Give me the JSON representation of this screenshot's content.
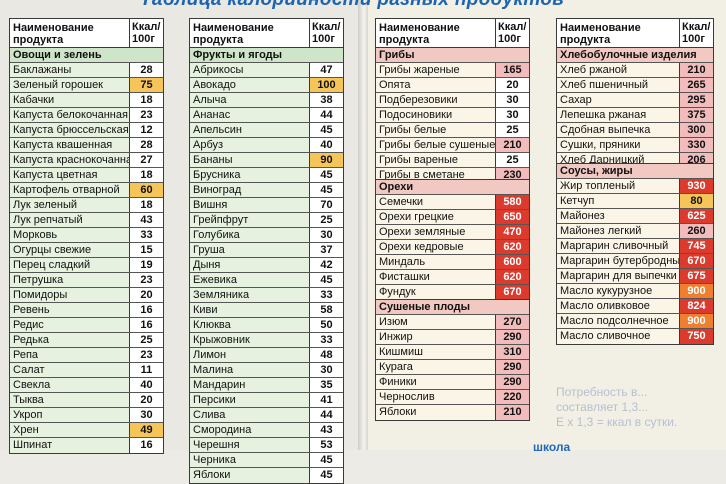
{
  "header_title": "Таблица калорийности разных продуктов",
  "school_label": "школа",
  "faded_text": [
    "Потребность в...",
    "составляет 1,3...",
    "Е x 1,3 = ккал в сутки."
  ],
  "columns": {
    "name": "Наименование продукта",
    "kcal": "Ккал/ 100г"
  },
  "colors": {
    "low": "#ffffff",
    "medium": "#f6c55a",
    "elevated": "#f2bcbc",
    "high": "#dd3a2e",
    "very_high": "#ef7f2f",
    "section_green": "#cfe5c9",
    "section_pink": "#f1c9c2",
    "title_blue": "#1d64b3"
  },
  "tables": [
    {
      "sections": [
        {
          "title": "Овощи и зелень",
          "items": [
            {
              "name": "Баклажаны",
              "kcal": "28",
              "level": "w"
            },
            {
              "name": "Зеленый горошек",
              "kcal": "75",
              "level": "y"
            },
            {
              "name": "Кабачки",
              "kcal": "18",
              "level": "w"
            },
            {
              "name": "Капуста белокочанная",
              "kcal": "23",
              "level": "w"
            },
            {
              "name": "Капуста брюссельская",
              "kcal": "12",
              "level": "w"
            },
            {
              "name": "Капуста квашенная",
              "kcal": "28",
              "level": "w"
            },
            {
              "name": "Капуста краснокочанная",
              "kcal": "27",
              "level": "w"
            },
            {
              "name": "Капуста цветная",
              "kcal": "18",
              "level": "w"
            },
            {
              "name": "Картофель отварной",
              "kcal": "60",
              "level": "y"
            },
            {
              "name": "Лук зеленый",
              "kcal": "18",
              "level": "w"
            },
            {
              "name": "Лук репчатый",
              "kcal": "43",
              "level": "w"
            },
            {
              "name": "Морковь",
              "kcal": "33",
              "level": "w"
            },
            {
              "name": "Огурцы свежие",
              "kcal": "15",
              "level": "w"
            },
            {
              "name": "Перец сладкий",
              "kcal": "19",
              "level": "w"
            },
            {
              "name": "Петрушка",
              "kcal": "23",
              "level": "w"
            },
            {
              "name": "Помидоры",
              "kcal": "20",
              "level": "w"
            },
            {
              "name": "Ревень",
              "kcal": "16",
              "level": "w"
            },
            {
              "name": "Редис",
              "kcal": "16",
              "level": "w"
            },
            {
              "name": "Редька",
              "kcal": "25",
              "level": "w"
            },
            {
              "name": "Репа",
              "kcal": "23",
              "level": "w"
            },
            {
              "name": "Салат",
              "kcal": "11",
              "level": "w"
            },
            {
              "name": "Свекла",
              "kcal": "40",
              "level": "w"
            },
            {
              "name": "Тыква",
              "kcal": "20",
              "level": "w"
            },
            {
              "name": "Укроп",
              "kcal": "30",
              "level": "w"
            },
            {
              "name": "Хрен",
              "kcal": "49",
              "level": "y"
            },
            {
              "name": "Шпинат",
              "kcal": "16",
              "level": "w"
            }
          ]
        }
      ]
    },
    {
      "sections": [
        {
          "title": "Фрукты и ягоды",
          "items": [
            {
              "name": "Абрикосы",
              "kcal": "47",
              "level": "w"
            },
            {
              "name": "Авокадо",
              "kcal": "100",
              "level": "y"
            },
            {
              "name": "Алыча",
              "kcal": "38",
              "level": "w"
            },
            {
              "name": "Ананас",
              "kcal": "44",
              "level": "w"
            },
            {
              "name": "Апельсин",
              "kcal": "45",
              "level": "w"
            },
            {
              "name": "Арбуз",
              "kcal": "40",
              "level": "w"
            },
            {
              "name": "Бананы",
              "kcal": "90",
              "level": "y"
            },
            {
              "name": "Брусника",
              "kcal": "45",
              "level": "w"
            },
            {
              "name": "Виноград",
              "kcal": "45",
              "level": "w"
            },
            {
              "name": "Вишня",
              "kcal": "70",
              "level": "w"
            },
            {
              "name": "Грейпфрут",
              "kcal": "25",
              "level": "w"
            },
            {
              "name": "Голубика",
              "kcal": "30",
              "level": "w"
            },
            {
              "name": "Груша",
              "kcal": "37",
              "level": "w"
            },
            {
              "name": "Дыня",
              "kcal": "42",
              "level": "w"
            },
            {
              "name": "Ежевика",
              "kcal": "45",
              "level": "w"
            },
            {
              "name": "Земляника",
              "kcal": "33",
              "level": "w"
            },
            {
              "name": "Киви",
              "kcal": "58",
              "level": "w"
            },
            {
              "name": "Клюква",
              "kcal": "50",
              "level": "w"
            },
            {
              "name": "Крыжовник",
              "kcal": "33",
              "level": "w"
            },
            {
              "name": "Лимон",
              "kcal": "48",
              "level": "w"
            },
            {
              "name": "Малина",
              "kcal": "30",
              "level": "w"
            },
            {
              "name": "Мандарин",
              "kcal": "35",
              "level": "w"
            },
            {
              "name": "Персики",
              "kcal": "41",
              "level": "w"
            },
            {
              "name": "Слива",
              "kcal": "44",
              "level": "w"
            },
            {
              "name": "Смородина",
              "kcal": "43",
              "level": "w"
            },
            {
              "name": "Черешня",
              "kcal": "53",
              "level": "w"
            },
            {
              "name": "Черника",
              "kcal": "45",
              "level": "w"
            },
            {
              "name": "Яблоки",
              "kcal": "45",
              "level": "w"
            }
          ]
        }
      ]
    },
    {
      "sections": [
        {
          "title": "Грибы",
          "items": [
            {
              "name": "Грибы жареные",
              "kcal": "165",
              "level": "p"
            },
            {
              "name": "Опята",
              "kcal": "20",
              "level": "w"
            },
            {
              "name": "Подберезовики",
              "kcal": "30",
              "level": "w"
            },
            {
              "name": "Подосиновики",
              "kcal": "30",
              "level": "w"
            },
            {
              "name": "Грибы белые",
              "kcal": "25",
              "level": "w"
            },
            {
              "name": "Грибы белые сушеные",
              "kcal": "210",
              "level": "p"
            },
            {
              "name": "Грибы вареные",
              "kcal": "25",
              "level": "w"
            },
            {
              "name": "Грибы в сметане",
              "kcal": "230",
              "level": "p"
            }
          ]
        }
      ]
    },
    {
      "sections": [
        {
          "title": "Орехи",
          "items": [
            {
              "name": "Семечки",
              "kcal": "580",
              "level": "r"
            },
            {
              "name": "Орехи грецкие",
              "kcal": "650",
              "level": "r"
            },
            {
              "name": "Орехи земляные",
              "kcal": "470",
              "level": "r"
            },
            {
              "name": "Орехи кедровые",
              "kcal": "620",
              "level": "r"
            },
            {
              "name": "Миндаль",
              "kcal": "600",
              "level": "r"
            },
            {
              "name": "Фисташки",
              "kcal": "620",
              "level": "r"
            },
            {
              "name": "Фундук",
              "kcal": "670",
              "level": "r"
            }
          ]
        }
      ]
    },
    {
      "sections": [
        {
          "title": "Сушеные плоды",
          "items": [
            {
              "name": "Изюм",
              "kcal": "270",
              "level": "p"
            },
            {
              "name": "Инжир",
              "kcal": "290",
              "level": "p"
            },
            {
              "name": "Кишмиш",
              "kcal": "310",
              "level": "p"
            },
            {
              "name": "Курага",
              "kcal": "290",
              "level": "p"
            },
            {
              "name": "Финики",
              "kcal": "290",
              "level": "p"
            },
            {
              "name": "Чернослив",
              "kcal": "220",
              "level": "p"
            },
            {
              "name": "Яблоки",
              "kcal": "210",
              "level": "p"
            }
          ]
        }
      ]
    },
    {
      "sections": [
        {
          "title": "Хлебобулочные изделия",
          "items": [
            {
              "name": "Хлеб ржаной",
              "kcal": "210",
              "level": "p"
            },
            {
              "name": "Хлеб пшеничный",
              "kcal": "265",
              "level": "p"
            },
            {
              "name": "Сахар",
              "kcal": "295",
              "level": "p"
            },
            {
              "name": "Лепешка ржаная",
              "kcal": "375",
              "level": "p"
            },
            {
              "name": "Сдобная выпечка",
              "kcal": "300",
              "level": "p"
            },
            {
              "name": "Сушки, пряники",
              "kcal": "330",
              "level": "p"
            },
            {
              "name": "Хлеб Дарницкий",
              "kcal": "206",
              "level": "p"
            }
          ]
        }
      ]
    },
    {
      "sections": [
        {
          "title": "Соусы, жиры",
          "items": [
            {
              "name": "Жир топленый",
              "kcal": "930",
              "level": "r"
            },
            {
              "name": "Кетчуп",
              "kcal": "80",
              "level": "y"
            },
            {
              "name": "Майонез",
              "kcal": "625",
              "level": "r"
            },
            {
              "name": "Майонез легкий",
              "kcal": "260",
              "level": "p"
            },
            {
              "name": "Маргарин сливочный",
              "kcal": "745",
              "level": "r"
            },
            {
              "name": "Маргарин бутербродный",
              "kcal": "670",
              "level": "r"
            },
            {
              "name": "Маргарин для выпечки",
              "kcal": "675",
              "level": "r"
            },
            {
              "name": "Масло кукурузное",
              "kcal": "900",
              "level": "o"
            },
            {
              "name": "Масло оливковое",
              "kcal": "824",
              "level": "r"
            },
            {
              "name": "Масло подсолнечное",
              "kcal": "900",
              "level": "o"
            },
            {
              "name": "Масло сливочное",
              "kcal": "750",
              "level": "r"
            }
          ]
        }
      ]
    }
  ]
}
